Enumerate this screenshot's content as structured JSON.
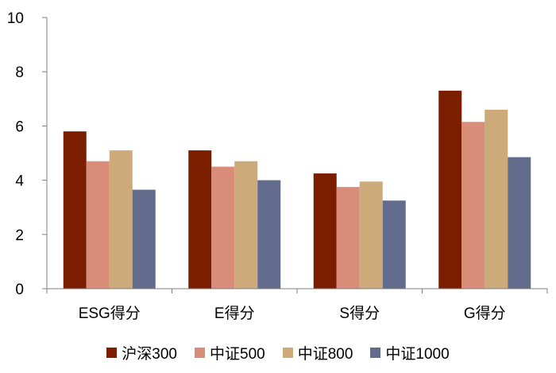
{
  "chart_data": {
    "type": "bar",
    "categories": [
      "ESG得分",
      "E得分",
      "S得分",
      "G得分"
    ],
    "series": [
      {
        "name": "沪深300",
        "color": "#7B1E00",
        "values": [
          5.8,
          5.1,
          4.25,
          7.3
        ]
      },
      {
        "name": "中证500",
        "color": "#D98C78",
        "values": [
          4.7,
          4.5,
          3.75,
          6.15
        ]
      },
      {
        "name": "中证800",
        "color": "#CCAA7A",
        "values": [
          5.1,
          4.7,
          3.95,
          6.6
        ]
      },
      {
        "name": "中证1000",
        "color": "#636C8C",
        "values": [
          3.65,
          4.0,
          3.25,
          4.85
        ]
      }
    ],
    "yticks": [
      "0",
      "2",
      "4",
      "6",
      "8",
      "10"
    ],
    "ylim": [
      0,
      10
    ],
    "grid": false,
    "legend_position": "bottom"
  }
}
